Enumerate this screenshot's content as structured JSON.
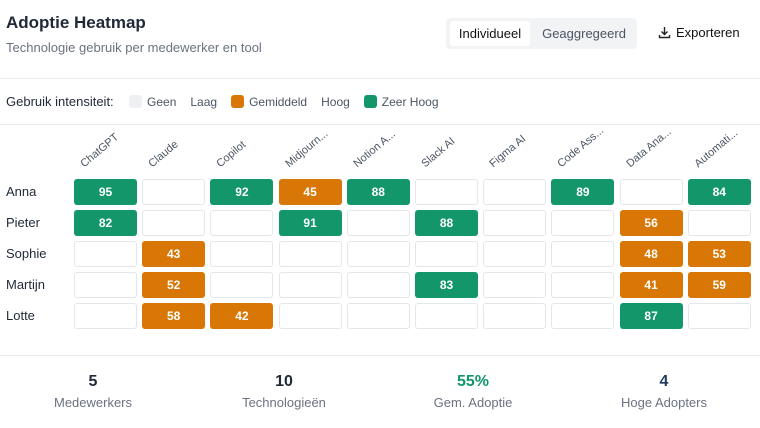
{
  "header": {
    "title": "Adoptie Heatmap",
    "subtitle": "Technologie gebruik per medewerker en tool"
  },
  "toggle": [
    "Individueel",
    "Geaggregeerd"
  ],
  "export": "Exporteren",
  "legend": {
    "label": "Gebruik intensiteit:",
    "items": [
      {
        "name": "Geen",
        "color": "#eef0f3"
      },
      {
        "name": "Laag",
        "color": null
      },
      {
        "name": "Gemiddeld",
        "color": "#d97706"
      },
      {
        "name": "Hoog",
        "color": null
      },
      {
        "name": "Zeer Hoog",
        "color": "#12966a"
      }
    ]
  },
  "heatmap": {
    "columns": [
      "ChatGPT",
      "Claude",
      "Copilot",
      "Midjourn...",
      "Notion A...",
      "Slack AI",
      "Figma AI",
      "Code Ass...",
      "Data Ana...",
      "Automati..."
    ],
    "rows": [
      {
        "name": "Anna",
        "values": [
          95,
          null,
          92,
          45,
          88,
          null,
          null,
          89,
          null,
          84
        ]
      },
      {
        "name": "Pieter",
        "values": [
          82,
          null,
          null,
          91,
          null,
          88,
          null,
          null,
          56,
          null
        ]
      },
      {
        "name": "Sophie",
        "values": [
          null,
          43,
          null,
          null,
          null,
          null,
          null,
          null,
          48,
          53
        ]
      },
      {
        "name": "Martijn",
        "values": [
          null,
          52,
          null,
          null,
          null,
          83,
          null,
          null,
          41,
          59
        ]
      },
      {
        "name": "Lotte",
        "values": [
          null,
          58,
          42,
          null,
          null,
          null,
          null,
          null,
          87,
          null
        ]
      }
    ]
  },
  "stats": [
    {
      "value": "5",
      "label": "Medewerkers",
      "color": "#1f2937"
    },
    {
      "value": "10",
      "label": "Technologieën",
      "color": "#1f2937"
    },
    {
      "value": "55%",
      "label": "Gem. Adoptie",
      "color": "#12966a"
    },
    {
      "value": "4",
      "label": "Hoge Adopters",
      "color": "#1e3a5f"
    }
  ]
}
